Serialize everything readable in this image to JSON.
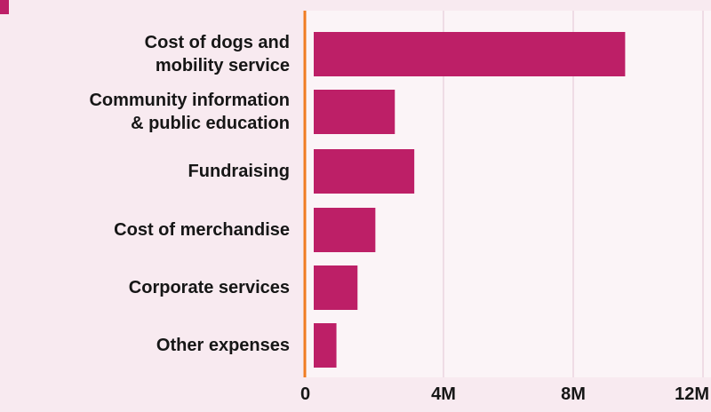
{
  "chart_data": {
    "type": "bar",
    "orientation": "horizontal",
    "categories": [
      "Cost of dogs and\nmobility service",
      "Community information\n& public education",
      "Fundraising",
      "Cost of merchandise",
      "Corporate services",
      "Other expenses"
    ],
    "values": [
      9.6,
      2.5,
      3.1,
      1.9,
      1.35,
      0.7
    ],
    "xlim": [
      0,
      12
    ],
    "x_ticks": [
      0,
      4,
      8,
      12
    ],
    "x_tick_labels": [
      "0",
      "4M",
      "8M",
      "12M"
    ],
    "grid": true,
    "colors": {
      "bar": "#bd1f67",
      "axis": "#f07c22",
      "grid": "#efdce5",
      "background": "#f8eaf0",
      "plot_background": "#fbf4f7"
    }
  }
}
